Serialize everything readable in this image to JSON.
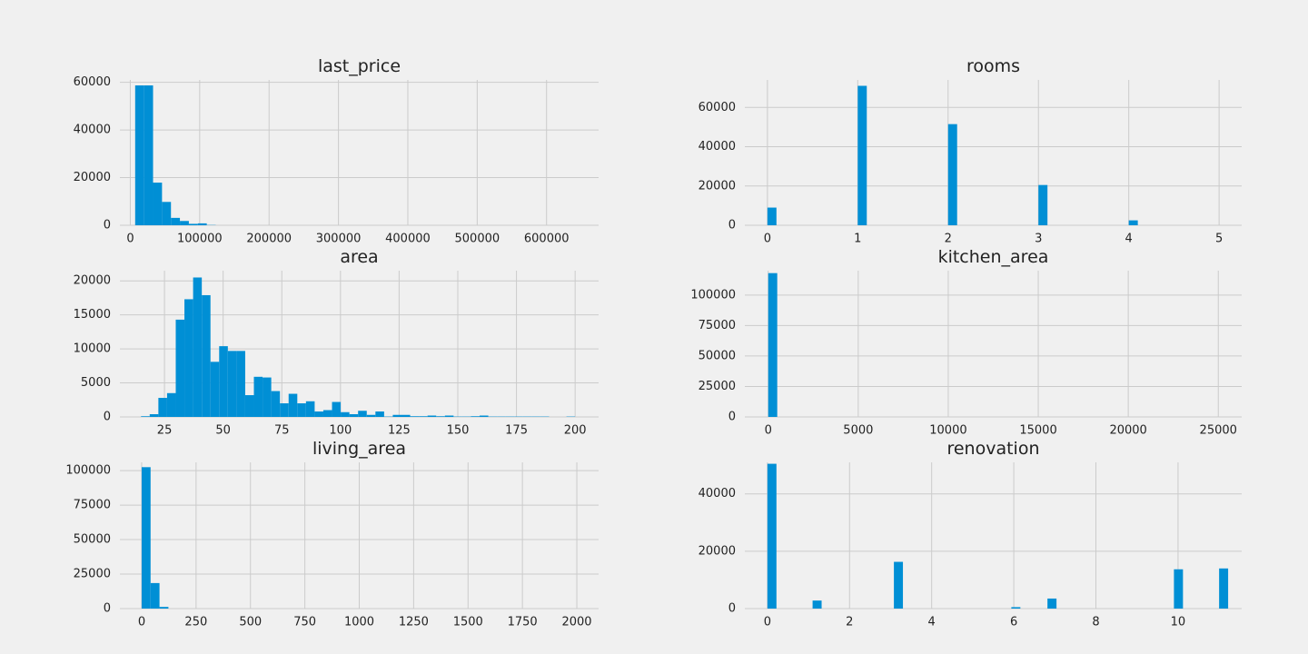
{
  "chart_data": [
    {
      "type": "bar",
      "title": "last_price",
      "xlim": [
        -15000,
        675000
      ],
      "ylim": [
        0,
        61000
      ],
      "xticks": [
        "0",
        "100000",
        "200000",
        "300000",
        "400000",
        "500000",
        "600000"
      ],
      "xtick_values": [
        0,
        100000,
        200000,
        300000,
        400000,
        500000,
        600000
      ],
      "yticks": [
        "0",
        "20000",
        "40000",
        "60000"
      ],
      "ytick_values": [
        0,
        20000,
        40000,
        60000
      ],
      "bin_start": 7000,
      "bin_width": 12900,
      "values": [
        58700,
        58700,
        17900,
        9800,
        3100,
        1800,
        600,
        800,
        100
      ]
    },
    {
      "type": "bar",
      "title": "rooms",
      "xlim": [
        -0.25,
        5.25
      ],
      "ylim": [
        0,
        74000
      ],
      "xticks": [
        "0",
        "1",
        "2",
        "3",
        "4",
        "5"
      ],
      "xtick_values": [
        0,
        1,
        2,
        3,
        4,
        5
      ],
      "yticks": [
        "0",
        "20000",
        "40000",
        "60000"
      ],
      "ytick_values": [
        0,
        20000,
        40000,
        60000
      ],
      "bin_start": 0,
      "bin_width": 0.1,
      "values": [
        9000,
        0,
        0,
        0,
        0,
        0,
        0,
        0,
        0,
        0,
        71000,
        0,
        0,
        0,
        0,
        0,
        0,
        0,
        0,
        0,
        51500,
        0,
        0,
        0,
        0,
        0,
        0,
        0,
        0,
        0,
        20500,
        0,
        0,
        0,
        0,
        0,
        0,
        0,
        0,
        0,
        2500,
        0,
        0,
        0,
        0,
        0,
        0,
        0,
        0,
        0
      ]
    },
    {
      "type": "bar",
      "title": "area",
      "xlim": [
        6,
        210
      ],
      "ylim": [
        0,
        21500
      ],
      "xticks": [
        "25",
        "50",
        "75",
        "100",
        "125",
        "150",
        "175",
        "200"
      ],
      "xtick_values": [
        25,
        50,
        75,
        100,
        125,
        150,
        175,
        200
      ],
      "yticks": [
        "0",
        "5000",
        "10000",
        "15000",
        "20000"
      ],
      "ytick_values": [
        0,
        5000,
        10000,
        15000,
        20000
      ],
      "bin_start": 15,
      "bin_width": 3.7,
      "values": [
        100,
        400,
        2800,
        3500,
        14300,
        17300,
        20500,
        17900,
        8100,
        10400,
        9700,
        9700,
        3200,
        5900,
        5800,
        3800,
        2000,
        3400,
        2000,
        2300,
        800,
        1000,
        2200,
        700,
        400,
        900,
        300,
        800,
        50,
        300,
        300,
        100,
        100,
        200,
        100,
        200,
        50,
        50,
        100,
        200,
        50,
        50,
        50,
        50,
        50,
        50,
        50,
        0,
        0,
        50
      ]
    },
    {
      "type": "bar",
      "title": "kitchen_area",
      "xlim": [
        -1300,
        26300
      ],
      "ylim": [
        0,
        120000
      ],
      "xticks": [
        "0",
        "5000",
        "10000",
        "15000",
        "20000",
        "25000"
      ],
      "xtick_values": [
        0,
        5000,
        10000,
        15000,
        20000,
        25000
      ],
      "yticks": [
        "0",
        "25000",
        "50000",
        "75000",
        "100000"
      ],
      "ytick_values": [
        0,
        25000,
        50000,
        75000,
        100000
      ],
      "bin_start": 0,
      "bin_width": 500,
      "values": [
        118000
      ]
    },
    {
      "type": "bar",
      "title": "living_area",
      "xlim": [
        -100,
        2100
      ],
      "ylim": [
        0,
        106000
      ],
      "xticks": [
        "0",
        "250",
        "500",
        "750",
        "1000",
        "1250",
        "1500",
        "1750",
        "2000"
      ],
      "xtick_values": [
        0,
        250,
        500,
        750,
        1000,
        1250,
        1500,
        1750,
        2000
      ],
      "yticks": [
        "0",
        "25000",
        "50000",
        "75000",
        "100000"
      ],
      "ytick_values": [
        0,
        25000,
        50000,
        75000,
        100000
      ],
      "bin_start": 0,
      "bin_width": 41,
      "values": [
        102500,
        18500,
        1200
      ]
    },
    {
      "type": "bar",
      "title": "renovation",
      "xlim": [
        -0.55,
        11.55
      ],
      "ylim": [
        0,
        51000
      ],
      "xticks": [
        "0",
        "2",
        "4",
        "6",
        "8",
        "10"
      ],
      "xtick_values": [
        0,
        2,
        4,
        6,
        8,
        10
      ],
      "yticks": [
        "0",
        "20000",
        "40000"
      ],
      "ytick_values": [
        0,
        20000,
        40000
      ],
      "bin_start": 0,
      "bin_width": 0.22,
      "values": [
        50500,
        0,
        0,
        0,
        0,
        2800,
        0,
        0,
        0,
        0,
        0,
        0,
        0,
        0,
        16300,
        0,
        0,
        0,
        0,
        0,
        0,
        0,
        0,
        0,
        0,
        0,
        0,
        500,
        0,
        0,
        0,
        3500,
        0,
        0,
        0,
        0,
        0,
        0,
        0,
        0,
        0,
        0,
        0,
        0,
        0,
        13700,
        0,
        0,
        0,
        0,
        14000
      ]
    }
  ],
  "style": {
    "bar_color": "#008fd5",
    "grid_color": "#cbcbcb",
    "background": "#f0f0f0"
  }
}
